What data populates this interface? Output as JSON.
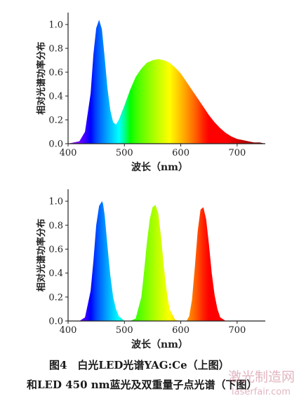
{
  "chart_data": [
    {
      "type": "area",
      "ylabel": "相对光谱功率分布",
      "xlabel": "波长（nm）",
      "xlim": [
        400,
        750
      ],
      "ylim": [
        0,
        1.1
      ],
      "x_ticks": [
        "400",
        "500",
        "600",
        "700"
      ],
      "y_ticks": [
        "0.0",
        "0.2",
        "0.4",
        "0.6",
        "0.8",
        "1.0"
      ],
      "fill": "rainbow-gradient-by-wavelength",
      "series": [
        {
          "x": [
            400,
            420,
            430,
            440,
            445,
            450,
            455,
            460,
            465,
            470,
            475,
            480,
            485,
            490,
            500,
            510,
            520,
            530,
            540,
            550,
            560,
            570,
            580,
            590,
            600,
            610,
            620,
            630,
            640,
            650,
            660,
            670,
            680,
            690,
            700,
            710,
            720,
            730,
            740,
            750
          ],
          "y": [
            0.0,
            0.02,
            0.1,
            0.42,
            0.75,
            0.97,
            1.04,
            0.96,
            0.72,
            0.46,
            0.28,
            0.18,
            0.16,
            0.2,
            0.32,
            0.45,
            0.56,
            0.63,
            0.68,
            0.7,
            0.71,
            0.7,
            0.68,
            0.64,
            0.59,
            0.52,
            0.45,
            0.38,
            0.31,
            0.24,
            0.18,
            0.13,
            0.09,
            0.06,
            0.04,
            0.03,
            0.02,
            0.01,
            0.01,
            0.0
          ]
        }
      ]
    },
    {
      "type": "area",
      "ylabel": "相对光谱功率分布",
      "xlabel": "波长（nm）",
      "xlim": [
        400,
        750
      ],
      "ylim": [
        0,
        1.1
      ],
      "x_ticks": [
        "400",
        "500",
        "600",
        "700"
      ],
      "y_ticks": [
        "0.0",
        "0.2",
        "0.4",
        "0.6",
        "0.8",
        "1.0"
      ],
      "fill": "rainbow-gradient-by-wavelength",
      "series": [
        {
          "x": [
            400,
            420,
            430,
            440,
            445,
            450,
            455,
            460,
            462,
            465,
            470,
            475,
            480,
            485,
            490,
            500,
            510,
            520,
            530,
            535,
            540,
            545,
            550,
            555,
            560,
            565,
            570,
            575,
            580,
            590,
            600,
            610,
            615,
            620,
            625,
            630,
            635,
            640,
            645,
            650,
            655,
            660,
            665,
            670,
            680,
            700,
            750
          ],
          "y": [
            0.0,
            0.0,
            0.03,
            0.25,
            0.5,
            0.8,
            0.96,
            1.0,
            0.98,
            0.88,
            0.62,
            0.38,
            0.2,
            0.1,
            0.04,
            0.0,
            0.0,
            0.02,
            0.2,
            0.42,
            0.66,
            0.85,
            0.95,
            0.97,
            0.9,
            0.7,
            0.45,
            0.25,
            0.1,
            0.01,
            0.0,
            0.0,
            0.04,
            0.18,
            0.45,
            0.75,
            0.93,
            0.95,
            0.85,
            0.64,
            0.4,
            0.22,
            0.1,
            0.03,
            0.0,
            0.0,
            0.0
          ]
        }
      ]
    }
  ],
  "caption": {
    "line1": "图4　白光LED光谱YAG:Ce（上图）",
    "line2": "和LED 450 nm蓝光及双重量子点光谱（下图）"
  },
  "watermark": {
    "line1": "激光制造网",
    "line2": "laserfair.com"
  }
}
